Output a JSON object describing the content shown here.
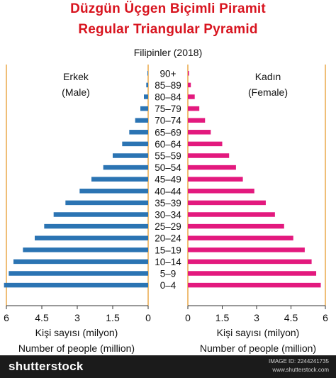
{
  "header": {
    "title_tr": "Düzgün Üçgen Biçimli Piramit",
    "title_en": "Regular Triangular Pyramid",
    "subtitle": "Filipinler (2018)"
  },
  "panels": {
    "male_tr": "Erkek",
    "male_en": "(Male)",
    "female_tr": "Kadın",
    "female_en": "(Female)"
  },
  "axes": {
    "xlabel_tr": "Kişi sayısı (milyon)",
    "xlabel_en": "Number of people (million)"
  },
  "footer": {
    "brand": "shutterstock",
    "site": "www.shutterstock.com",
    "image_id": "IMAGE ID: 2244241735"
  },
  "colors": {
    "male": "#2b74b3",
    "female": "#e3197e",
    "title": "#d8141f",
    "axis": "#e8a33d"
  },
  "chart_data": {
    "type": "bar",
    "orientation": "horizontal-population-pyramid",
    "categories": [
      "0–4",
      "5–9",
      "10–14",
      "15–19",
      "20–24",
      "25–29",
      "30–34",
      "35–39",
      "40–44",
      "45–49",
      "50–54",
      "55–59",
      "60–64",
      "65–69",
      "70–74",
      "75–79",
      "80–84",
      "85–89",
      "90+"
    ],
    "series": [
      {
        "name": "Erkek (Male)",
        "values": [
          6.1,
          5.9,
          5.7,
          5.3,
          4.8,
          4.4,
          4.0,
          3.5,
          2.9,
          2.4,
          1.9,
          1.5,
          1.1,
          0.8,
          0.55,
          0.33,
          0.18,
          0.08,
          0.03
        ]
      },
      {
        "name": "Kadın (Female)",
        "values": [
          5.8,
          5.6,
          5.4,
          5.1,
          4.6,
          4.2,
          3.8,
          3.4,
          2.9,
          2.4,
          2.1,
          1.8,
          1.5,
          1.0,
          0.75,
          0.5,
          0.3,
          0.13,
          0.05
        ]
      }
    ],
    "xlim": [
      0,
      6
    ],
    "xticks": [
      "0",
      "1.5",
      "3",
      "4.5",
      "6"
    ],
    "xticks_left": [
      "6",
      "4.5",
      "3",
      "1.5",
      "0"
    ],
    "xlabel": "Kişi sayısı (milyon) / Number of people (million)",
    "grid": false
  }
}
